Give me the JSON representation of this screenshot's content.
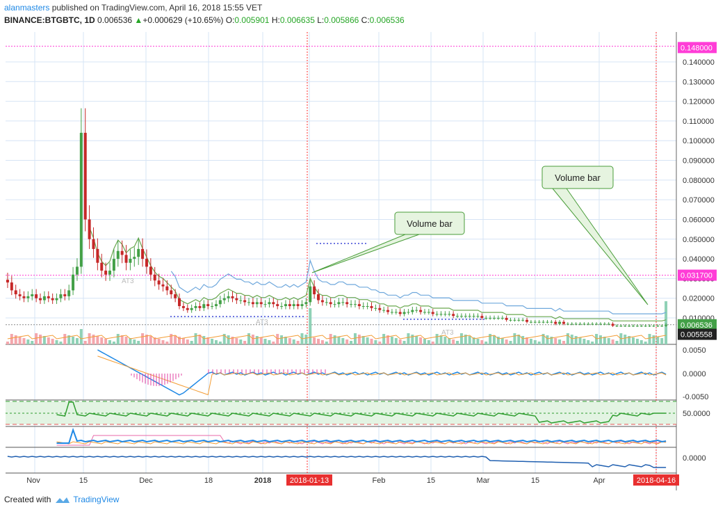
{
  "header": {
    "author": "alanmasters",
    "published_text": " published on TradingView.com, April 16, 2018 15:55 VET",
    "symbol": "BINANCE:BTGBTC, 1D",
    "price": "0.006536",
    "change_arrow": "▲",
    "change": "+0.000629 (+10.65%)",
    "o_label": "O:",
    "o_value": "0.005901",
    "h_label": "H:",
    "h_value": "0.006635",
    "l_label": "L:",
    "l_value": "0.005866",
    "c_label": "C:",
    "c_value": "0.006536"
  },
  "footer": {
    "created_with": "Created with",
    "brand": "TradingView"
  },
  "colors": {
    "up": "#26a69a",
    "down": "#c62828",
    "upcandle": "#43a047",
    "grid": "#d6e4f5",
    "magenta": "#ff3dd7",
    "red_marker": "#ff2e2e",
    "bb_upper": "#6fa8dc",
    "bb_mid": "#6aa84f",
    "orange": "#f39c33",
    "volume_up": "#8fd1b6",
    "volume_down": "#f4a6ac"
  },
  "chart_data": {
    "type": "candlestick",
    "title": "BINANCE:BTGBTC, 1D",
    "y_axis_ticks": [
      "0.140000",
      "0.130000",
      "0.120000",
      "0.110000",
      "0.100000",
      "0.090000",
      "0.080000",
      "0.070000",
      "0.060000",
      "0.050000",
      "0.040000",
      "0.030000",
      "0.020000",
      "0.010000"
    ],
    "ylim": [
      0.0,
      0.15
    ],
    "x_axis_ticks": [
      "Nov",
      "15",
      "Dec",
      "18",
      "2018",
      "2018-01-13",
      "Feb",
      "15",
      "Mar",
      "15",
      "Apr",
      "2018-04-16"
    ],
    "price_labels": {
      "high_line": "0.148000",
      "mid_line": "0.031700",
      "last": "0.006536",
      "low": "0.005558"
    },
    "annotations": [
      "Volume bar",
      "Volume bar"
    ],
    "pattern_labels": [
      "AT3",
      "AT3",
      "AT3"
    ],
    "close_series": [
      0.028,
      0.024,
      0.022,
      0.021,
      0.02,
      0.021,
      0.022,
      0.02,
      0.019,
      0.021,
      0.02,
      0.019,
      0.02,
      0.022,
      0.021,
      0.024,
      0.032,
      0.036,
      0.104,
      0.06,
      0.05,
      0.045,
      0.038,
      0.034,
      0.032,
      0.034,
      0.04,
      0.044,
      0.042,
      0.038,
      0.04,
      0.041,
      0.045,
      0.04,
      0.036,
      0.032,
      0.029,
      0.027,
      0.026,
      0.024,
      0.022,
      0.02,
      0.016,
      0.015,
      0.014,
      0.015,
      0.016,
      0.015,
      0.017,
      0.016,
      0.016,
      0.017,
      0.019,
      0.02,
      0.021,
      0.02,
      0.019,
      0.019,
      0.018,
      0.018,
      0.017,
      0.018,
      0.017,
      0.017,
      0.018,
      0.017,
      0.016,
      0.016,
      0.017,
      0.016,
      0.017,
      0.016,
      0.017,
      0.018,
      0.026,
      0.022,
      0.019,
      0.018,
      0.018,
      0.017,
      0.017,
      0.018,
      0.018,
      0.017,
      0.017,
      0.017,
      0.016,
      0.016,
      0.016,
      0.015,
      0.015,
      0.014,
      0.014,
      0.013,
      0.013,
      0.013,
      0.012,
      0.013,
      0.013,
      0.014,
      0.014,
      0.013,
      0.013,
      0.013,
      0.012,
      0.012,
      0.012,
      0.012,
      0.012,
      0.011,
      0.011,
      0.011,
      0.011,
      0.011,
      0.011,
      0.011,
      0.01,
      0.01,
      0.01,
      0.01,
      0.01,
      0.01,
      0.009,
      0.009,
      0.009,
      0.009,
      0.009,
      0.008,
      0.008,
      0.008,
      0.008,
      0.008,
      0.008,
      0.008,
      0.007,
      0.008,
      0.007,
      0.007,
      0.007,
      0.007,
      0.007,
      0.007,
      0.007,
      0.007,
      0.007,
      0.007,
      0.007,
      0.007,
      0.006,
      0.006,
      0.006,
      0.006,
      0.006,
      0.006,
      0.006,
      0.006,
      0.006,
      0.006,
      0.006,
      0.006,
      0.006,
      0.0065
    ],
    "macd_ticks": [
      "0.0050",
      "0.0000",
      "-0.0050"
    ],
    "rsi_tick": "50.0000",
    "osc_tick": "0.0000"
  }
}
